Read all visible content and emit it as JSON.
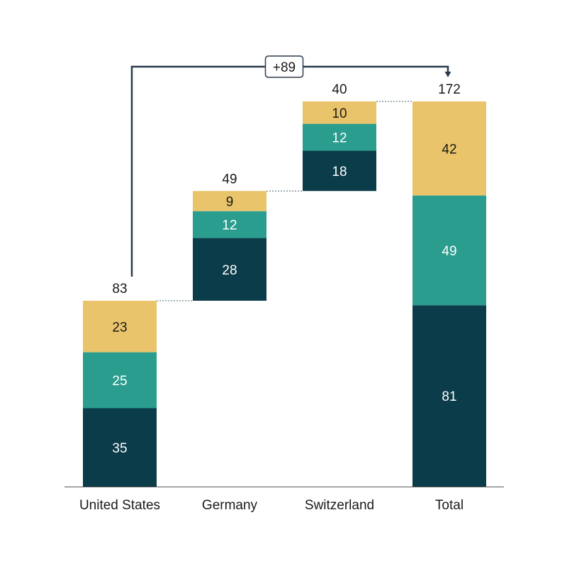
{
  "chart_data": {
    "type": "bar",
    "subtype": "stacked-waterfall",
    "categories": [
      "United States",
      "Germany",
      "Switzerland",
      "Total"
    ],
    "series": [
      {
        "values": [
          35,
          28,
          18,
          81
        ],
        "color": "#0b3c49"
      },
      {
        "values": [
          25,
          12,
          12,
          49
        ],
        "color": "#2a9d8f"
      },
      {
        "values": [
          23,
          9,
          10,
          42
        ],
        "color": "#e9c46a"
      }
    ],
    "totals": [
      "83",
      "49",
      "40",
      "172"
    ],
    "bar_kind": [
      "absolute",
      "relative",
      "relative",
      "absolute"
    ],
    "difference_label": "+89",
    "ylim": [
      0,
      172
    ],
    "grid": false,
    "legend": "none"
  }
}
